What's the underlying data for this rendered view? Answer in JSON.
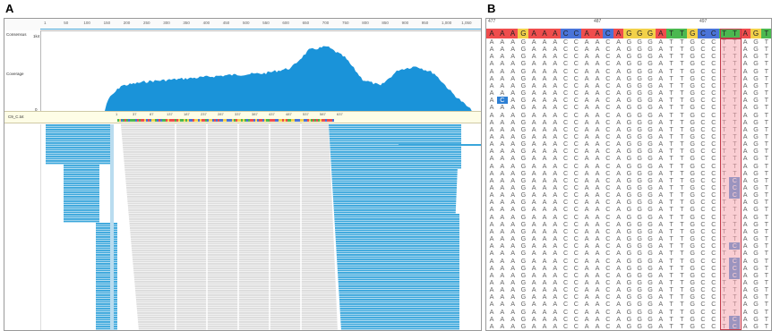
{
  "panel_a": {
    "label": "A",
    "consensus_label": "Consensus",
    "coverage_label": "Coverage",
    "ymax_label": "1k4",
    "ymin_label": "0",
    "track_label": "C9_C.txt",
    "ruler_ticks": [
      "1",
      "50",
      "100",
      "150",
      "200",
      "250",
      "300",
      "350",
      "400",
      "450",
      "500",
      "550",
      "600",
      "650",
      "700",
      "750",
      "800",
      "850",
      "900",
      "950",
      "1,000",
      "1,050"
    ],
    "seq_ticks": [
      "1",
      "37",
      "87",
      "137",
      "187",
      "237",
      "287",
      "337",
      "387",
      "437",
      "487",
      "537",
      "587",
      "637"
    ],
    "colors": {
      "read": "#3aa6db",
      "grey_read": "#dcdcdc",
      "coverage": "#1a93d9",
      "seq_bar": "#fefde6"
    }
  },
  "panel_b": {
    "label": "B",
    "positions": [
      {
        "text": "477",
        "col": 0
      },
      {
        "text": "487",
        "col": 10
      },
      {
        "text": "497",
        "col": 20
      }
    ],
    "consensus": [
      "A",
      "A",
      "A",
      "G",
      "A",
      "A",
      "A",
      "C",
      "C",
      "A",
      "A",
      "C",
      "A",
      "G",
      "G",
      "G",
      "A",
      "T",
      "T",
      "G",
      "C",
      "C",
      "T",
      "T",
      "A",
      "G",
      "T"
    ],
    "read_template": [
      "A",
      "A",
      "A",
      "G",
      "A",
      "A",
      "A",
      "C",
      "C",
      "A",
      "A",
      "C",
      "A",
      "G",
      "G",
      "G",
      "A",
      "T",
      "T",
      "G",
      "C",
      "C",
      "T",
      "T",
      "A",
      "G",
      "T"
    ],
    "row_count": 40,
    "mismatches": [
      {
        "row": 8,
        "col": 1,
        "base": "C"
      },
      {
        "row": 19,
        "col": 23,
        "base": "C"
      },
      {
        "row": 20,
        "col": 23,
        "base": "C"
      },
      {
        "row": 21,
        "col": 23,
        "base": "C"
      },
      {
        "row": 28,
        "col": 23,
        "base": "C"
      },
      {
        "row": 30,
        "col": 23,
        "base": "C"
      },
      {
        "row": 31,
        "col": 23,
        "base": "C"
      },
      {
        "row": 32,
        "col": 23,
        "base": "C"
      },
      {
        "row": 38,
        "col": 23,
        "base": "C"
      },
      {
        "row": 39,
        "col": 23,
        "base": "C"
      }
    ],
    "base_colors": {
      "A": "#ef4d4d",
      "C": "#4a74d9",
      "G": "#f2d14a",
      "T": "#4bb850"
    },
    "mismatch_color": "#2d7fd3"
  }
}
